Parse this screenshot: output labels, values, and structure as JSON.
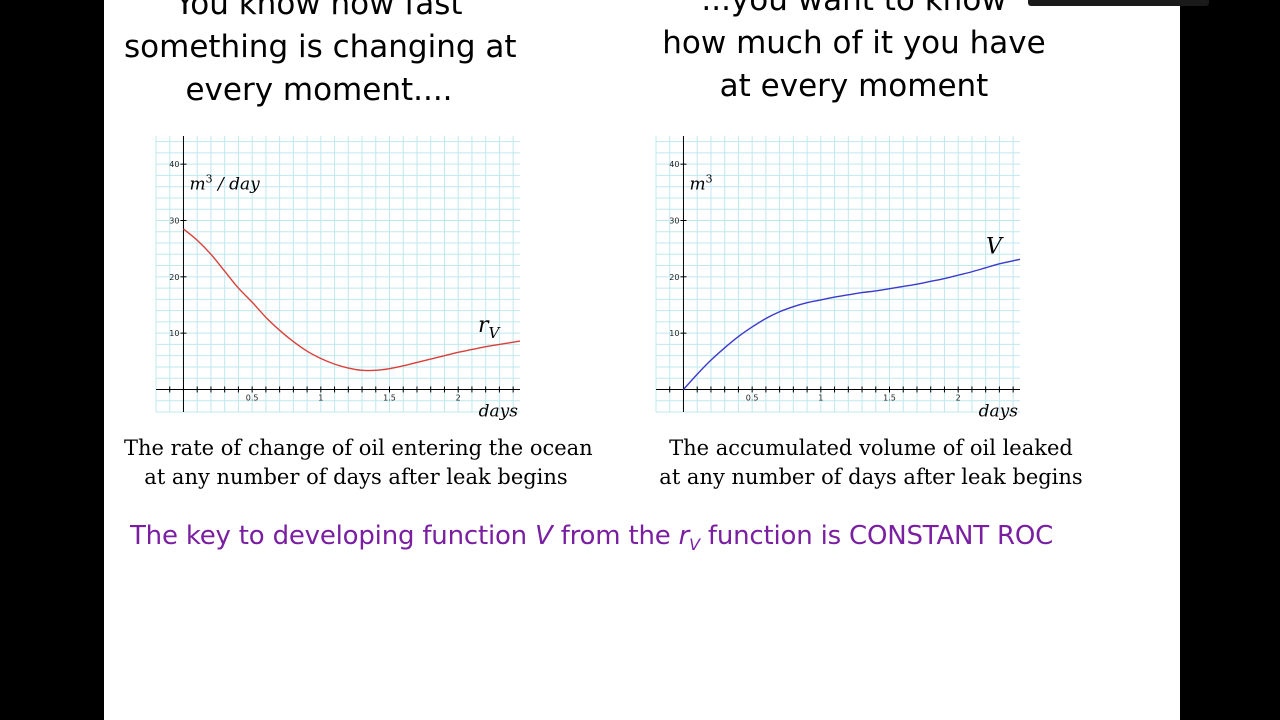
{
  "left_panel": {
    "heading_lines": [
      "You know how fast",
      "something is changing at",
      "every moment...."
    ],
    "caption_lines": [
      "The rate of change of oil entering the ocean",
      "at any number of days after leak begins"
    ]
  },
  "right_panel": {
    "heading_lines": [
      "...you want to know",
      "how much of it you have",
      "at every moment"
    ],
    "caption_lines": [
      "The accumulated volume of oil leaked",
      "at any number of days after leak begins"
    ]
  },
  "key_statement": {
    "prefix": "The key to developing function ",
    "func_v": "V",
    "middle": " from the ",
    "func_r": "r",
    "func_r_sub": "V",
    "suffix": " function is CONSTANT ROC"
  },
  "colors": {
    "rate_curve": "#d9403a",
    "volume_curve": "#3a3acc",
    "key_statement": "#7a1fa2",
    "grid": "#bfe8ee"
  },
  "chart_data": [
    {
      "type": "line",
      "title": "",
      "xlabel": "days",
      "ylabel": "m^3 / day",
      "xlim": [
        -0.2,
        2.45
      ],
      "ylim": [
        -4,
        45
      ],
      "x_ticks": [
        0.5,
        1,
        1.5,
        2
      ],
      "x_tick_labels": [
        "0.5",
        "1",
        "1.5",
        "2"
      ],
      "y_ticks": [
        10,
        20,
        30,
        40
      ],
      "y_tick_labels": [
        "10",
        "20",
        "30",
        "40"
      ],
      "grid": true,
      "series": [
        {
          "name": "r_V",
          "color": "#d9403a",
          "x": [
            0,
            0.1,
            0.2,
            0.3,
            0.4,
            0.5,
            0.6,
            0.7,
            0.8,
            0.9,
            1.0,
            1.1,
            1.2,
            1.3,
            1.4,
            1.5,
            1.6,
            1.7,
            1.8,
            1.9,
            2.0,
            2.1,
            2.2,
            2.3,
            2.45
          ],
          "y": [
            28.5,
            26.5,
            24,
            21,
            18,
            15.5,
            12.8,
            10.5,
            8.5,
            6.8,
            5.5,
            4.5,
            3.8,
            3.4,
            3.4,
            3.7,
            4.2,
            4.8,
            5.4,
            6.0,
            6.6,
            7.1,
            7.6,
            8.0,
            8.6
          ]
        }
      ],
      "curve_label": "r",
      "curve_label_sub": "V"
    },
    {
      "type": "line",
      "title": "",
      "xlabel": "days",
      "ylabel": "m^3",
      "xlim": [
        -0.2,
        2.45
      ],
      "ylim": [
        -4,
        45
      ],
      "x_ticks": [
        0.5,
        1,
        1.5,
        2
      ],
      "x_tick_labels": [
        "0.5",
        "1",
        "1.5",
        "2"
      ],
      "y_ticks": [
        10,
        20,
        30,
        40
      ],
      "y_tick_labels": [
        "10",
        "20",
        "30",
        "40"
      ],
      "grid": true,
      "series": [
        {
          "name": "V",
          "color": "#3a3acc",
          "x": [
            0,
            0.1,
            0.2,
            0.3,
            0.4,
            0.5,
            0.6,
            0.7,
            0.8,
            0.9,
            1.0,
            1.1,
            1.2,
            1.3,
            1.4,
            1.5,
            1.6,
            1.7,
            1.8,
            1.9,
            2.0,
            2.1,
            2.2,
            2.3,
            2.45
          ],
          "y": [
            0,
            2.7,
            5.2,
            7.4,
            9.4,
            11.1,
            12.6,
            13.8,
            14.7,
            15.4,
            15.9,
            16.4,
            16.8,
            17.2,
            17.5,
            17.9,
            18.3,
            18.7,
            19.2,
            19.7,
            20.3,
            20.9,
            21.6,
            22.3,
            23.1
          ]
        }
      ],
      "curve_label": "V",
      "curve_label_sub": ""
    }
  ]
}
